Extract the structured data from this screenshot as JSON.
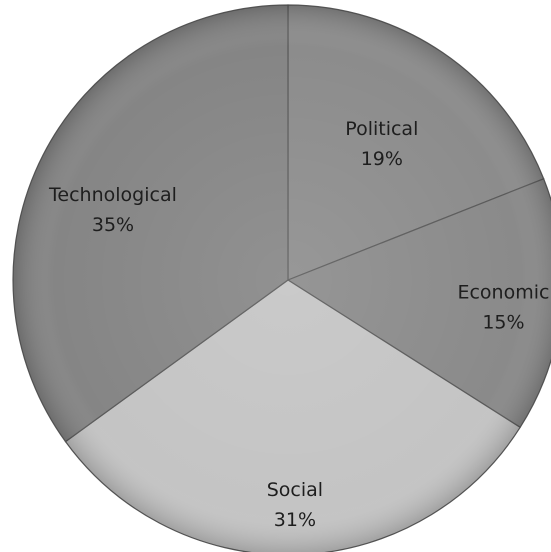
{
  "chart_data": {
    "type": "pie",
    "title": "",
    "legend": "none",
    "slices": [
      {
        "label": "Political",
        "value": 19,
        "value_label": "19%",
        "color": "#8c8c8c"
      },
      {
        "label": "Economic",
        "value": 15,
        "value_label": "15%",
        "color": "#8a8a8a"
      },
      {
        "label": "Social",
        "value": 31,
        "value_label": "31%",
        "color": "#c4c4c4"
      },
      {
        "label": "Technological",
        "value": 35,
        "value_label": "35%",
        "color": "#858585"
      }
    ]
  }
}
